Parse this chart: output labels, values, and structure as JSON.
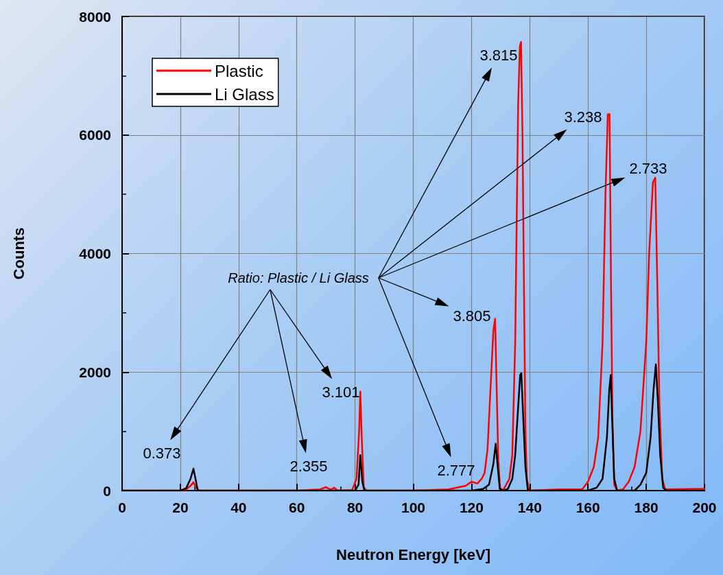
{
  "chart_data": {
    "type": "line",
    "xlabel": "Neutron Energy [keV]",
    "ylabel": "Counts",
    "xlim": [
      0,
      200
    ],
    "xticks": [
      0,
      20,
      40,
      60,
      80,
      100,
      120,
      140,
      160,
      180,
      200
    ],
    "ylim": [
      0,
      8000
    ],
    "yticks": [
      0,
      2000,
      4000,
      6000,
      8000
    ],
    "grid": true,
    "legend": "top left",
    "marker": "none",
    "line_style": "solid",
    "series": [
      {
        "name": "Plastic",
        "color": "#ff0000",
        "x": [
          0,
          10,
          20,
          22,
          23.5,
          24.5,
          25.5,
          26.5,
          40,
          60,
          68,
          70,
          71,
          72,
          72.8,
          74,
          79,
          80.5,
          81.4,
          81.8,
          82.3,
          83,
          84,
          100,
          112,
          118,
          120,
          122,
          123.5,
          124.5,
          125.5,
          126.5,
          127.5,
          128.1,
          128.6,
          129.2,
          129.8,
          130.5,
          131,
          133,
          134,
          135,
          136,
          136.6,
          137,
          137.5,
          138,
          138.5,
          139,
          139.8,
          150,
          158,
          160,
          162,
          163.5,
          165,
          166,
          166.8,
          167.4,
          167.9,
          168.4,
          169,
          170,
          172,
          174,
          176,
          178,
          180,
          181,
          182.3,
          183.1,
          183.8,
          184.5,
          185.5,
          186.5,
          200
        ],
        "values": [
          0,
          0,
          0,
          20,
          80,
          140,
          40,
          0,
          0,
          0,
          20,
          60,
          30,
          20,
          50,
          0,
          10,
          200,
          1000,
          1670,
          900,
          50,
          0,
          0,
          20,
          80,
          150,
          120,
          200,
          300,
          700,
          1700,
          2700,
          2900,
          1800,
          500,
          50,
          0,
          20,
          200,
          600,
          2500,
          6500,
          7500,
          7570,
          6000,
          3500,
          1000,
          200,
          0,
          20,
          20,
          150,
          400,
          900,
          2500,
          5000,
          6350,
          6350,
          3500,
          1200,
          100,
          0,
          20,
          150,
          400,
          1000,
          2500,
          4000,
          5200,
          5280,
          3500,
          1500,
          200,
          20,
          30
        ]
      },
      {
        "name": "Li Glass",
        "color": "#000000",
        "x": [
          0,
          20,
          22,
          23.5,
          24.5,
          25.2,
          26,
          80,
          81.2,
          81.8,
          82.5,
          83.2,
          120,
          124,
          126,
          127.5,
          128.3,
          129,
          129.7,
          131,
          132.5,
          134,
          135,
          136,
          136.7,
          137.1,
          137.7,
          138.5,
          139.3,
          140,
          160,
          163,
          165,
          166.5,
          167.3,
          167.8,
          168.3,
          169,
          170,
          176,
          178,
          180,
          181.5,
          182.5,
          183.3,
          184,
          184.8,
          185.8,
          187,
          200
        ],
        "values": [
          0,
          0,
          40,
          200,
          370,
          200,
          0,
          0,
          100,
          600,
          150,
          0,
          0,
          30,
          100,
          450,
          790,
          400,
          30,
          0,
          30,
          200,
          600,
          1400,
          1950,
          1980,
          1300,
          400,
          20,
          0,
          0,
          50,
          200,
          900,
          1700,
          1950,
          1200,
          200,
          0,
          0,
          100,
          300,
          900,
          1700,
          2130,
          1500,
          600,
          50,
          0,
          0
        ]
      }
    ],
    "annotations": [
      "Ratio: Plastic / Li Glass",
      "0.373",
      "2.355",
      "3.101",
      "3.815",
      "3.238",
      "2.733",
      "3.805",
      "2.777"
    ]
  }
}
